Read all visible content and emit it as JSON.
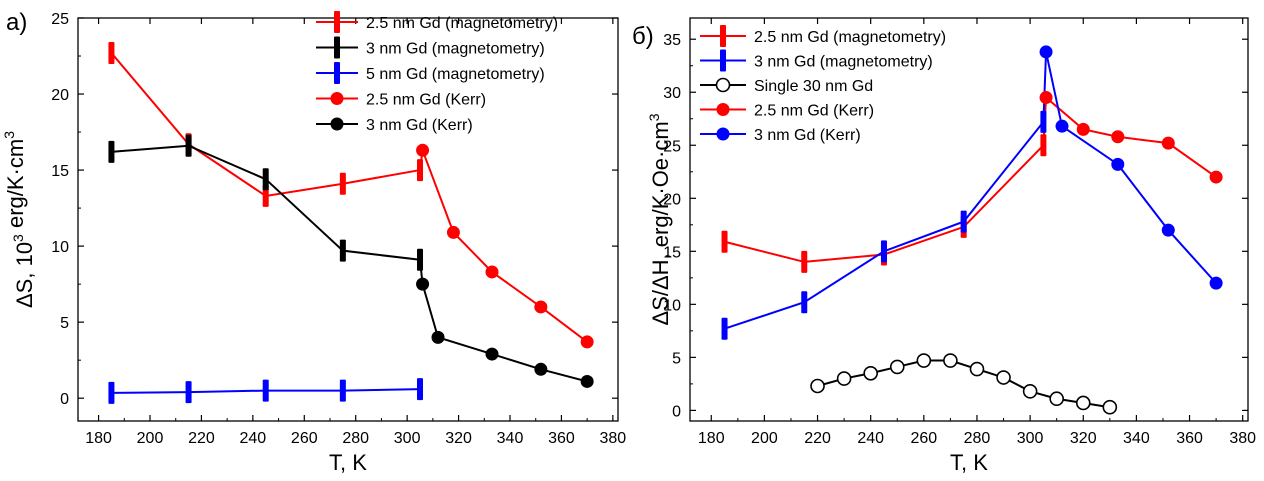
{
  "chart_data": [
    {
      "type": "line",
      "panel_label": "а)",
      "xlabel": "T, K",
      "ylabel_parts": {
        "pre": "ΔS, 10",
        "sup": "3",
        "mid": " erg/K·cm",
        "sup2": "3"
      },
      "xlim": [
        172,
        382
      ],
      "ylim": [
        -1.5,
        25
      ],
      "xticks": [
        180,
        200,
        220,
        240,
        260,
        280,
        300,
        320,
        340,
        360,
        380
      ],
      "yticks": [
        0,
        5,
        10,
        15,
        20,
        25
      ],
      "legend_position": "top-right",
      "series": [
        {
          "name": "2.5 nm Gd (magnetometry)",
          "color": "#ff0000",
          "marker": "bar",
          "x": [
            185,
            215,
            245,
            275,
            305
          ],
          "y": [
            22.7,
            16.7,
            13.3,
            14.1,
            15.0
          ]
        },
        {
          "name": "3 nm Gd (magnetometry)",
          "color": "#000000",
          "marker": "bar",
          "x": [
            185,
            215,
            245,
            275,
            305
          ],
          "y": [
            16.2,
            16.6,
            14.4,
            9.7,
            9.1
          ]
        },
        {
          "name": "5 nm Gd (magnetometry)",
          "color": "#0000ff",
          "marker": "bar",
          "x": [
            185,
            215,
            245,
            275,
            305
          ],
          "y": [
            0.35,
            0.4,
            0.5,
            0.5,
            0.6
          ]
        },
        {
          "name": "2.5 nm Gd (Kerr)",
          "color": "#ff0000",
          "marker": "circle",
          "x": [
            306,
            318,
            333,
            352,
            370
          ],
          "y": [
            16.3,
            10.9,
            8.3,
            6.0,
            3.7
          ]
        },
        {
          "name": "3 nm Gd (Kerr)",
          "color": "#000000",
          "marker": "circle",
          "x": [
            306,
            312,
            333,
            352,
            370
          ],
          "y": [
            7.5,
            4.0,
            2.9,
            1.9,
            1.1
          ]
        }
      ],
      "connectors": [
        {
          "color": "#ff0000",
          "x": [
            305,
            306
          ],
          "y": [
            15.0,
            16.3
          ]
        },
        {
          "color": "#000000",
          "x": [
            305,
            306
          ],
          "y": [
            9.1,
            7.5
          ]
        }
      ]
    },
    {
      "type": "line",
      "panel_label": "б)",
      "xlabel": "T, K",
      "ylabel_parts": {
        "pre": "ΔS/ΔH, erg/K·Oe·cm",
        "sup": "3"
      },
      "xlim": [
        172,
        382
      ],
      "ylim": [
        -1,
        37
      ],
      "xticks": [
        180,
        200,
        220,
        240,
        260,
        280,
        300,
        320,
        340,
        360,
        380
      ],
      "yticks": [
        0,
        5,
        10,
        15,
        20,
        25,
        30,
        35
      ],
      "legend_position": "top-left",
      "series": [
        {
          "name": "2.5 nm Gd (magnetometry)",
          "color": "#ff0000",
          "marker": "bar",
          "x": [
            185,
            215,
            245,
            275,
            305
          ],
          "y": [
            15.9,
            14.0,
            14.7,
            17.3,
            25.0
          ]
        },
        {
          "name": "3 nm Gd (magnetometry)",
          "color": "#0000ff",
          "marker": "bar",
          "x": [
            185,
            215,
            245,
            275,
            305
          ],
          "y": [
            7.7,
            10.2,
            15.0,
            17.8,
            27.2
          ]
        },
        {
          "name": "Single 30 nm Gd",
          "color": "#000000",
          "marker": "open-circle",
          "x": [
            220,
            230,
            240,
            250,
            260,
            270,
            280,
            290,
            300,
            310,
            320,
            330
          ],
          "y": [
            2.3,
            3.0,
            3.5,
            4.1,
            4.7,
            4.7,
            3.9,
            3.1,
            1.8,
            1.1,
            0.7,
            0.3
          ]
        },
        {
          "name": "2.5 nm Gd (Kerr)",
          "color": "#ff0000",
          "marker": "circle",
          "x": [
            306,
            320,
            333,
            352,
            370
          ],
          "y": [
            29.5,
            26.5,
            25.8,
            25.2,
            22.0
          ]
        },
        {
          "name": "3 nm Gd (Kerr)",
          "color": "#0000ff",
          "marker": "circle",
          "x": [
            306,
            312,
            333,
            352,
            370
          ],
          "y": [
            33.8,
            26.8,
            23.2,
            17.0,
            12.0
          ]
        }
      ],
      "connectors": [
        {
          "color": "#ff0000",
          "x": [
            305,
            306
          ],
          "y": [
            25.0,
            29.5
          ]
        },
        {
          "color": "#0000ff",
          "x": [
            305,
            306
          ],
          "y": [
            27.2,
            33.8
          ]
        }
      ]
    }
  ]
}
